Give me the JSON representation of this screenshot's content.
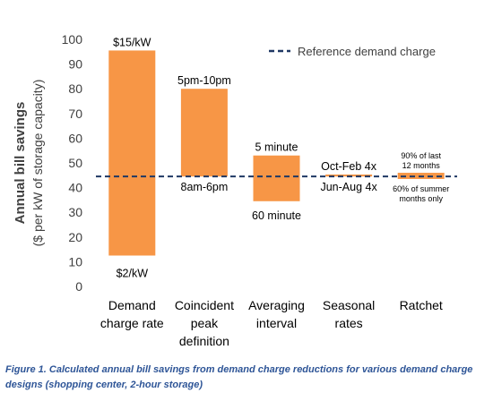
{
  "chart_data": {
    "type": "bar",
    "subtype": "floating-range",
    "categories": [
      [
        "Demand",
        "charge rate"
      ],
      [
        "Coincident",
        "peak",
        "definition"
      ],
      [
        "Averaging",
        "interval"
      ],
      [
        "Seasonal",
        "rates"
      ],
      [
        "Ratchet"
      ]
    ],
    "ranges": [
      {
        "low": 12.5,
        "high": 95.5,
        "high_label": [
          "$15/kW"
        ],
        "low_label": [
          "$2/kW"
        ]
      },
      {
        "low": 44.5,
        "high": 80,
        "high_label": [
          "5pm-10pm"
        ],
        "low_label": [
          "8am-6pm"
        ]
      },
      {
        "low": 34.5,
        "high": 53,
        "high_label": [
          "5 minute"
        ],
        "low_label": [
          "60 minute"
        ]
      },
      {
        "low": 44.5,
        "high": 45.3,
        "high_label": [
          "Oct-Feb 4x"
        ],
        "low_label": [
          "Jun-Aug 4x"
        ]
      },
      {
        "low": 43.5,
        "high": 46,
        "high_label": [
          "90% of last",
          "12 months"
        ],
        "low_label": [
          "60% of summer",
          "months only"
        ]
      }
    ],
    "reference_line": {
      "value": 44.5,
      "label": "Reference demand charge"
    },
    "ylabel": [
      "Annual bill savings",
      "($ per kW of storage capacity)"
    ],
    "ylim": [
      0,
      100
    ],
    "yticks": [
      0,
      10,
      20,
      30,
      40,
      50,
      60,
      70,
      80,
      90,
      100
    ],
    "grid": false,
    "legend": "top-right",
    "colors": {
      "bar": "#f79646",
      "reference": "#1f3864",
      "axis_text": "#404040"
    }
  },
  "caption": "Figure 1. Calculated annual bill savings from demand charge reductions for various demand charge designs (shopping center, 2-hour storage)"
}
